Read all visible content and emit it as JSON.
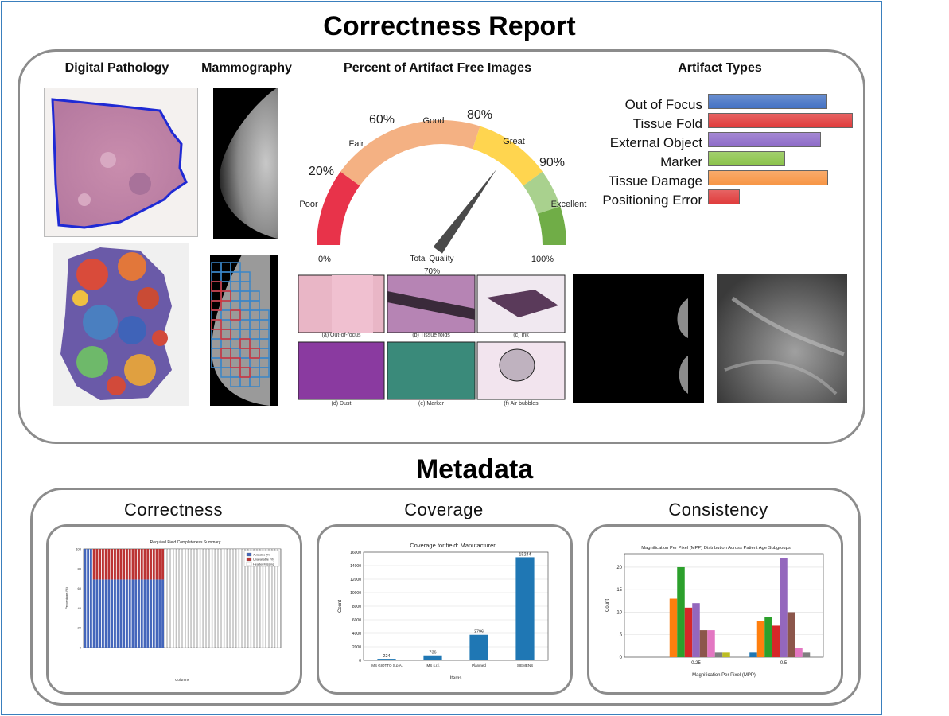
{
  "report_title": "Correctness Report",
  "metadata_title": "Metadata",
  "sections": {
    "digital_pathology": "Digital Pathology",
    "mammography": "Mammography",
    "percent_artifact_free": "Percent of Artifact Free Images",
    "artifact_types": "Artifact Types"
  },
  "gauge": {
    "value_percent": 70,
    "zone_labels": [
      "Poor",
      "Fair",
      "Good",
      "Great",
      "Excellent"
    ],
    "tick_labels": [
      "0%",
      "20%",
      "60%",
      "80%",
      "90%",
      "100%"
    ],
    "center_label": "Total Quality",
    "value_label": "70%",
    "zone_colors": [
      "#e8334a",
      "#f4b183",
      "#ffd54f",
      "#a9d18e",
      "#70ad47"
    ]
  },
  "artifact_types": [
    {
      "name": "Out of Focus",
      "value": 0.82,
      "color": "#4472c4"
    },
    {
      "name": "Tissue Fold",
      "value": 1.0,
      "color": "#e03c3c"
    },
    {
      "name": "External Object",
      "value": 0.78,
      "color": "#8e6bc8"
    },
    {
      "name": "Marker",
      "value": 0.53,
      "color": "#8bc34a"
    },
    {
      "name": "Tissue Damage",
      "value": 0.83,
      "color": "#f79646"
    },
    {
      "name": "Positioning Error",
      "value": 0.21,
      "color": "#e03c3c"
    }
  ],
  "artifact_examples": [
    "(a) Out-of-focus",
    "(b) Tissue folds",
    "(c) Ink",
    "(d) Dust",
    "(e) Marker",
    "(f) Air bubbles"
  ],
  "metadata_cards": [
    {
      "title": "Correctness"
    },
    {
      "title": "Coverage"
    },
    {
      "title": "Consistency"
    }
  ],
  "chart_data": [
    {
      "type": "bar",
      "title": "Required Field Completeness Summary",
      "xlabel": "Columns",
      "ylabel": "Percentage (%)",
      "ylim": [
        0,
        100
      ],
      "yticks": [
        0,
        20,
        40,
        60,
        80,
        100
      ],
      "legend": [
        "Available (%)",
        "Unavailable (%)",
        "Header Missing"
      ],
      "legend_position": "top-right",
      "series": [
        {
          "name": "Available (%)",
          "values": [
            100,
            100,
            100,
            69,
            69,
            69,
            69,
            69,
            69,
            69,
            69,
            69,
            69,
            69,
            69,
            69,
            69,
            69,
            69,
            69,
            69,
            69,
            69,
            69,
            69,
            69,
            69,
            0,
            0,
            0,
            0,
            0,
            0,
            0,
            0,
            0,
            0,
            0,
            0,
            0,
            0,
            0,
            0,
            0,
            0,
            0,
            0,
            0,
            0,
            0,
            0,
            0,
            0,
            0,
            0,
            0,
            0,
            0,
            0,
            0,
            0,
            0,
            0,
            0,
            0,
            0
          ]
        },
        {
          "name": "Unavailable (%)",
          "values": [
            0,
            0,
            0,
            31,
            31,
            31,
            31,
            31,
            31,
            31,
            31,
            31,
            31,
            31,
            31,
            31,
            31,
            31,
            31,
            31,
            31,
            31,
            31,
            31,
            31,
            31,
            31,
            0,
            0,
            0,
            0,
            0,
            0,
            0,
            0,
            0,
            0,
            0,
            0,
            0,
            0,
            0,
            0,
            0,
            0,
            0,
            0,
            0,
            0,
            0,
            0,
            0,
            0,
            0,
            0,
            0,
            0,
            0,
            0,
            0,
            0,
            0,
            0,
            0,
            0,
            0
          ]
        },
        {
          "name": "Header Missing",
          "values": [
            0,
            0,
            0,
            0,
            0,
            0,
            0,
            0,
            0,
            0,
            0,
            0,
            0,
            0,
            0,
            0,
            0,
            0,
            0,
            0,
            0,
            0,
            0,
            0,
            0,
            0,
            0,
            100,
            100,
            100,
            100,
            100,
            100,
            100,
            100,
            100,
            100,
            100,
            100,
            100,
            100,
            100,
            100,
            100,
            100,
            100,
            100,
            100,
            100,
            100,
            100,
            100,
            100,
            100,
            100,
            100,
            100,
            100,
            100,
            100,
            100,
            100,
            100,
            100,
            100,
            100
          ]
        }
      ]
    },
    {
      "type": "bar",
      "title": "Coverage for field: Manufacturer",
      "xlabel": "Items",
      "ylabel": "Count",
      "ylim": [
        0,
        16000
      ],
      "yticks": [
        0,
        2000,
        4000,
        6000,
        8000,
        10000,
        12000,
        14000,
        16000
      ],
      "categories": [
        "IMS GIOTTO S.p.A.",
        "IMS s.r.l.",
        "Planmed",
        "SIEMENS"
      ],
      "values": [
        224,
        736,
        3796,
        15244
      ],
      "grid": true
    },
    {
      "type": "bar",
      "title": "Magnification Per Pixel (MPP) Distribution Across Patient Age Subgroups",
      "xlabel": "Magnification Per Pixel (MPP)",
      "ylabel": "Count",
      "ylim": [
        0,
        23
      ],
      "yticks": [
        0,
        5,
        10,
        15,
        20
      ],
      "categories": [
        "0.25",
        "0.5"
      ],
      "series": [
        {
          "color": "#1f77b4",
          "values": [
            0,
            1
          ]
        },
        {
          "color": "#ff7f0e",
          "values": [
            13,
            8
          ]
        },
        {
          "color": "#2ca02c",
          "values": [
            20,
            9
          ]
        },
        {
          "color": "#d62728",
          "values": [
            11,
            7
          ]
        },
        {
          "color": "#9467bd",
          "values": [
            12,
            22
          ]
        },
        {
          "color": "#8c564b",
          "values": [
            6,
            10
          ]
        },
        {
          "color": "#e377c2",
          "values": [
            6,
            2
          ]
        },
        {
          "color": "#7f7f7f",
          "values": [
            1,
            1
          ]
        },
        {
          "color": "#bcbd22",
          "values": [
            1,
            0
          ]
        }
      ],
      "grid": true
    }
  ]
}
